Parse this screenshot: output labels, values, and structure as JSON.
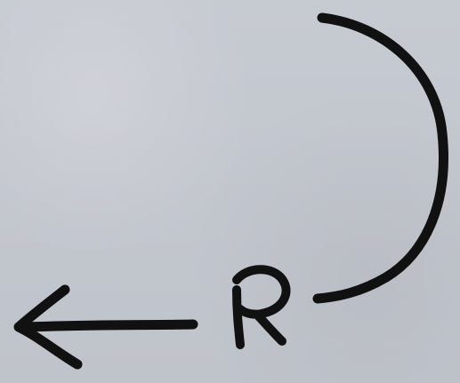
{
  "diagram": {
    "label": "R",
    "colors": {
      "background": "#c2c6cd",
      "ink": "#111111"
    }
  }
}
